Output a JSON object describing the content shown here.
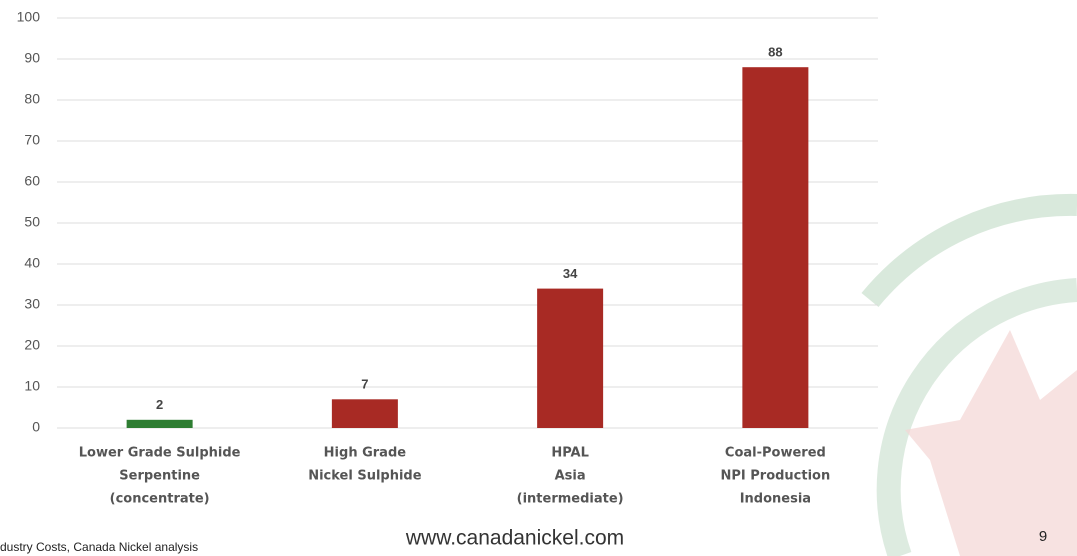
{
  "chart_data": {
    "type": "bar",
    "categories": [
      [
        "Lower Grade Sulphide",
        "Serpentine",
        "(concentrate)"
      ],
      [
        "High Grade",
        "Nickel Sulphide"
      ],
      [
        "HPAL",
        "Asia",
        "(intermediate)"
      ],
      [
        "Coal-Powered",
        "NPI Production",
        "Indonesia"
      ]
    ],
    "values": [
      2,
      7,
      34,
      88
    ],
    "colors": [
      "#2e7d32",
      "#a82a24",
      "#a82a24",
      "#a82a24"
    ],
    "ylim": [
      0,
      100
    ],
    "yticks": [
      0,
      10,
      20,
      30,
      40,
      50,
      60,
      70,
      80,
      90,
      100
    ],
    "grid": true
  },
  "footer": {
    "source": "dustry Costs, Canada Nickel analysis",
    "url": "www.canadanickel.com",
    "page": "9"
  }
}
